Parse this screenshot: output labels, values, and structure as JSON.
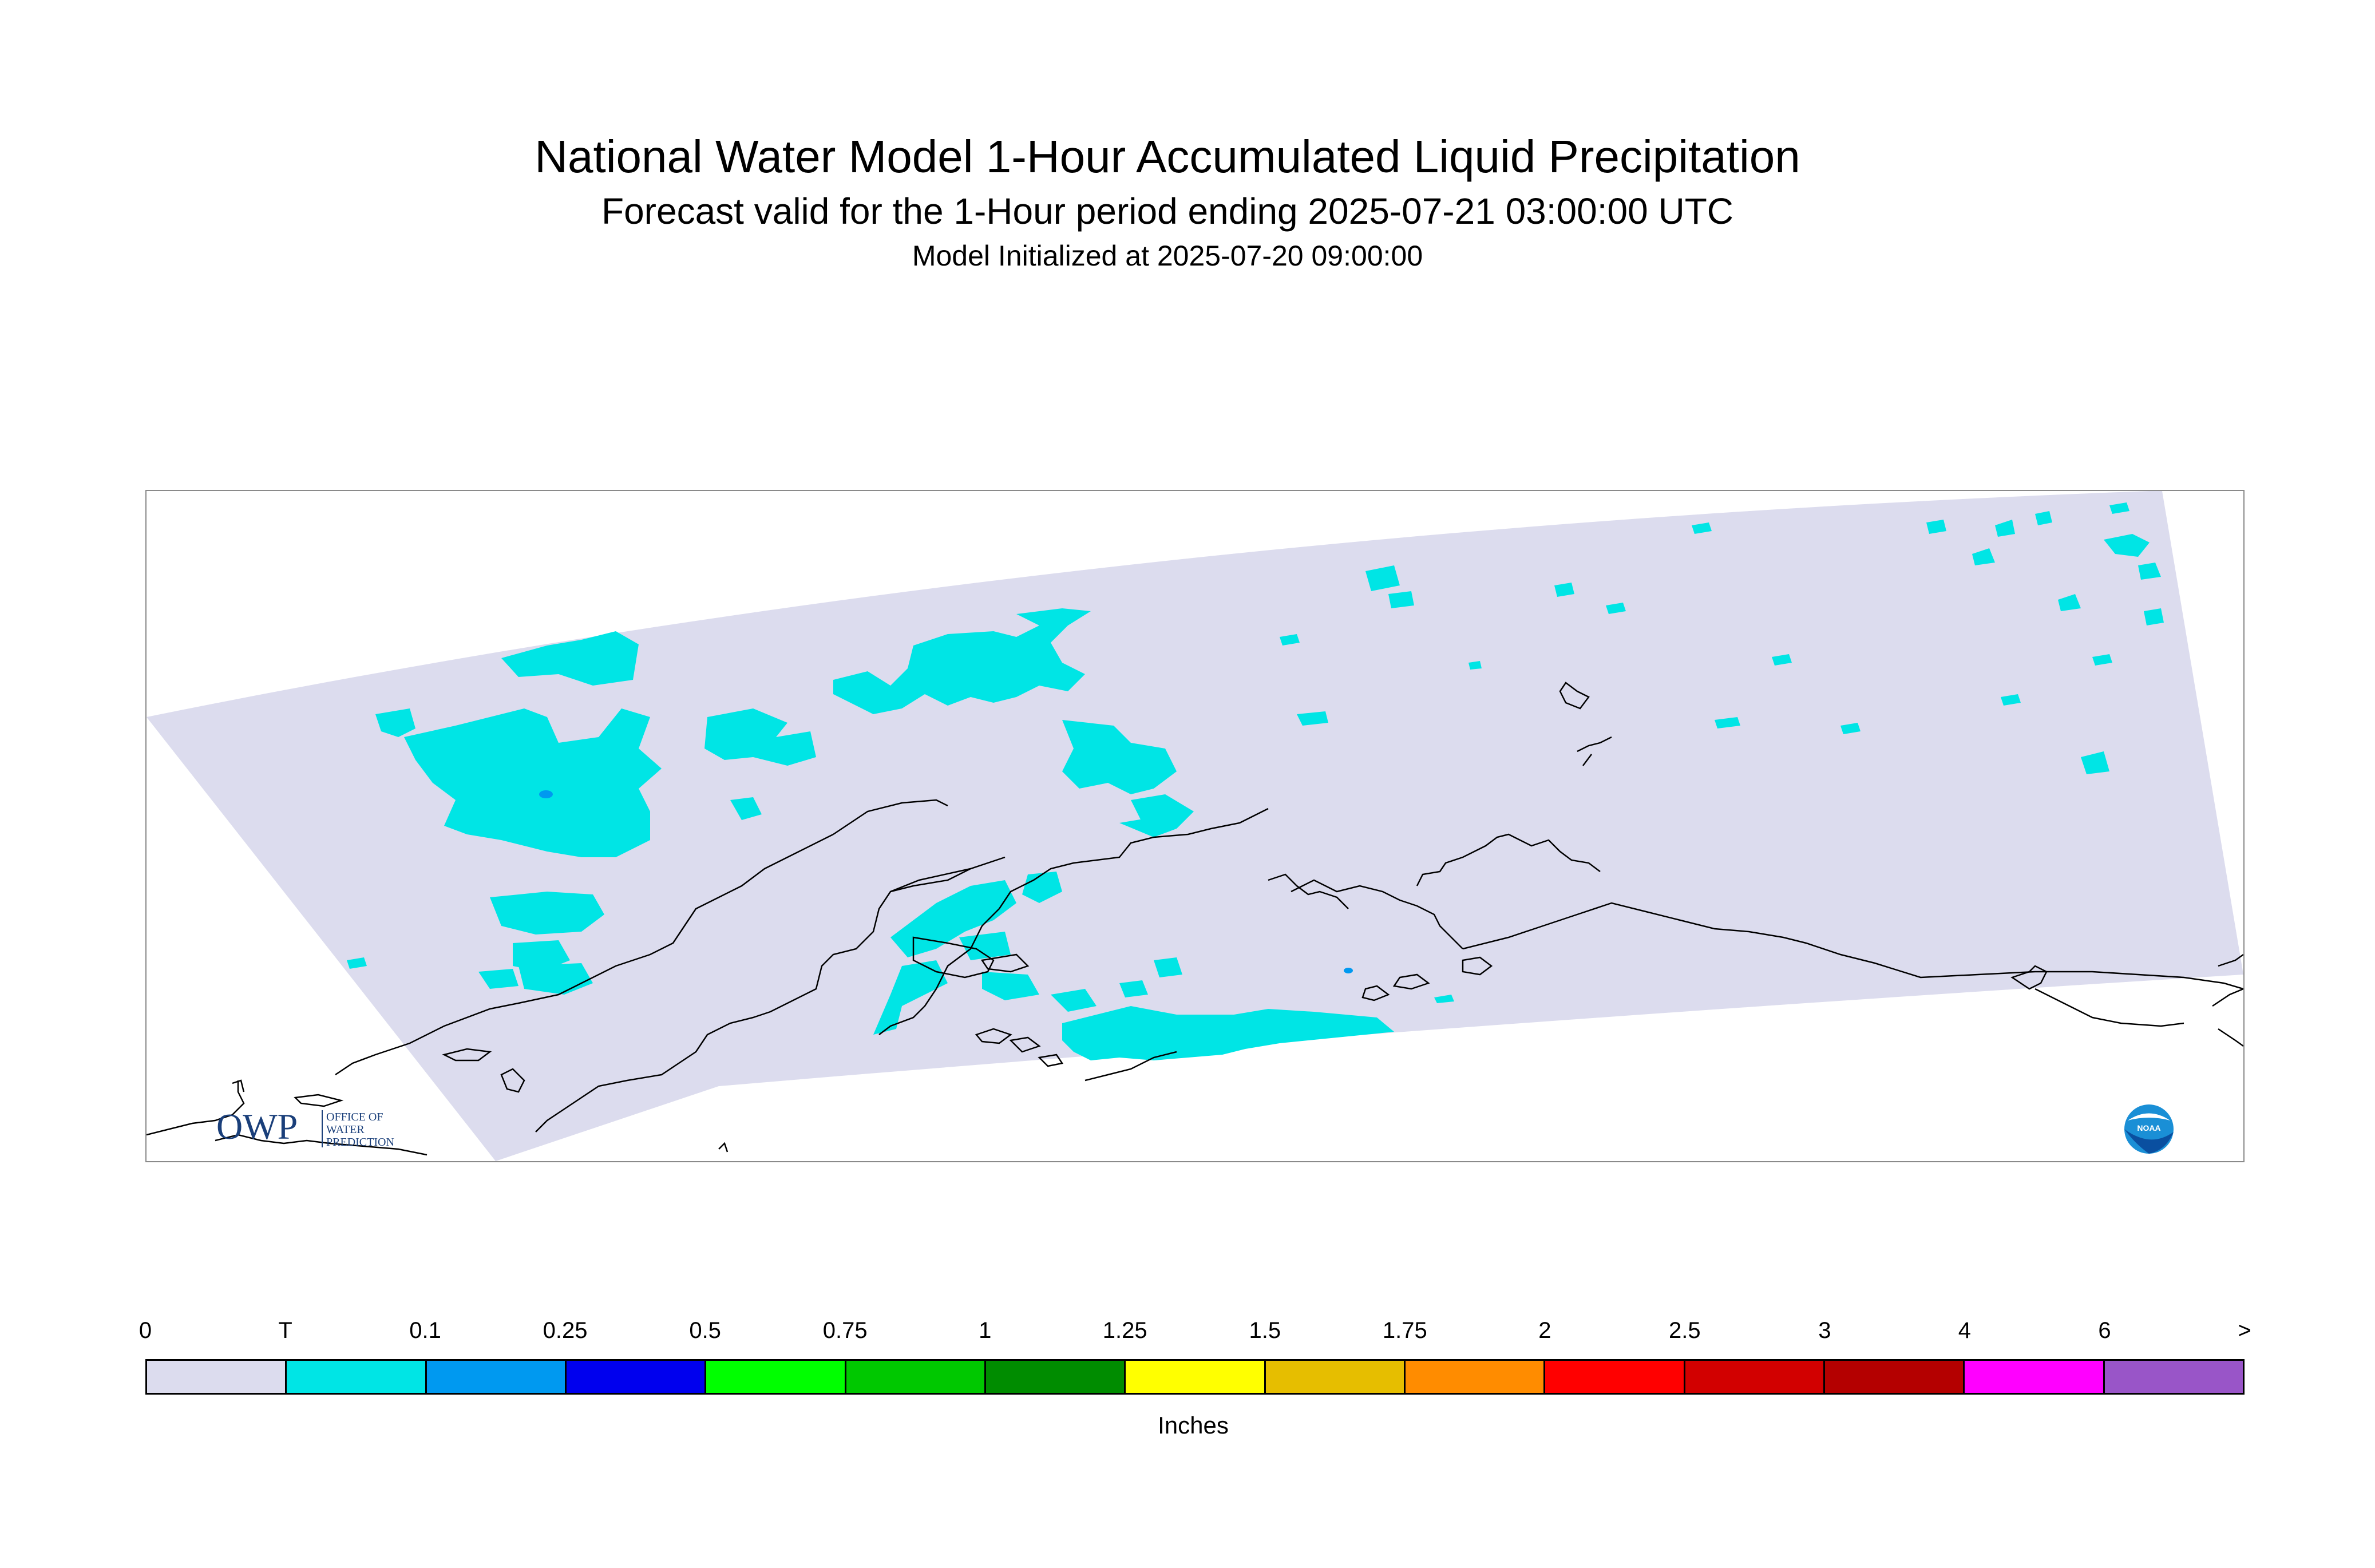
{
  "header": {
    "title": "National Water Model 1-Hour Accumulated Liquid Precipitation",
    "subtitle": "Forecast valid for the 1-Hour period ending 2025-07-21 03:00:00 UTC",
    "init_line": "Model Initialized at 2025-07-20 09:00:00"
  },
  "map": {
    "domain_fill": "#dcdcee",
    "precip_fill": "#00e5e5",
    "heavier_fill": "#0099f0",
    "coastline_color": "#000000"
  },
  "logos": {
    "owp_text": "OWP",
    "owp_sub_1": "OFFICE OF",
    "owp_sub_2": "WATER",
    "owp_sub_3": "PREDICTION",
    "owp_icon": "owp-logo",
    "noaa_text": "NOAA",
    "noaa_icon": "noaa-logo"
  },
  "legend": {
    "ticks": [
      "0",
      "T",
      "0.1",
      "0.25",
      "0.5",
      "0.75",
      "1",
      "1.25",
      "1.5",
      "1.75",
      "2",
      "2.5",
      "3",
      "4",
      "6",
      ">"
    ],
    "colors": [
      "#dcdcee",
      "#00e5e5",
      "#0099f0",
      "#0000ee",
      "#00ff00",
      "#00c800",
      "#008c00",
      "#ffff00",
      "#e6be00",
      "#ff8c00",
      "#ff0000",
      "#d20000",
      "#b40000",
      "#ff00ff",
      "#9955c8"
    ],
    "units": "Inches"
  }
}
